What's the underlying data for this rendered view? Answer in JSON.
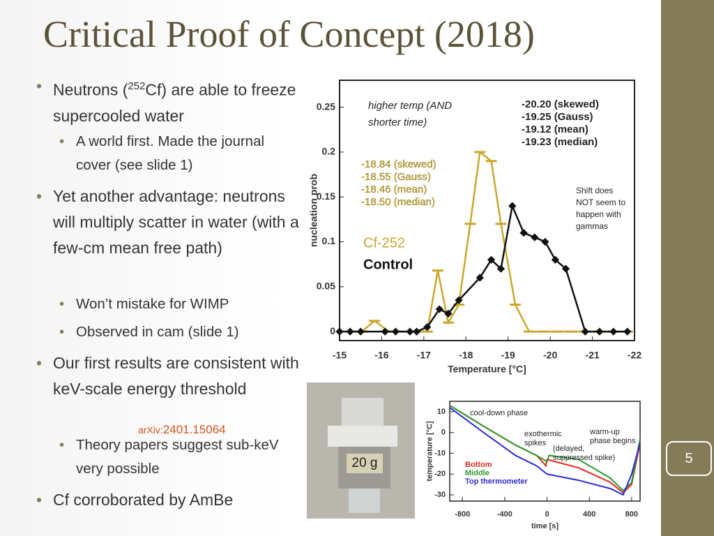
{
  "title": "Critical Proof of Concept (2018)",
  "bullets": [
    {
      "level": 1,
      "parts": [
        "Neutrons (",
        "252",
        "Cf) are able to freeze supercooled water"
      ]
    },
    {
      "level": 2,
      "text": "A world first. Made the journal cover (see slide 1)"
    },
    {
      "level": 1,
      "text": "Yet another advantage: neutrons will multiply scatter in water (with a few-cm mean free path)"
    },
    {
      "level": 2,
      "text": "Won’t mistake for WIMP"
    },
    {
      "level": 2,
      "text": "Observed in cam (slide 1)"
    },
    {
      "level": 1,
      "text": "Our first results are consistent with keV-scale energy threshold"
    },
    {
      "level": 2,
      "text": "Theory papers suggest sub-keV very possible"
    },
    {
      "level": 1,
      "text": "Cf corroborated by AmBe"
    }
  ],
  "arxiv": {
    "prefix": "arXiv:",
    "id": "2401.15064"
  },
  "slide_number": "5",
  "photo_label": "20 g",
  "figure_main": {
    "xlabel": "Temperature [°C]",
    "ylabel": "nucleation prob",
    "xlim": [
      -15,
      -22
    ],
    "ylim": [
      -0.01,
      0.28
    ],
    "xticks": [
      -15,
      -16,
      -17,
      -18,
      -19,
      -20,
      -21,
      -22
    ],
    "yticks": [
      0,
      0.05,
      0.1,
      0.15,
      0.2,
      0.25
    ],
    "note": "higher temp (AND shorter time)",
    "side_note": "Shift does NOT seem to happen with gammas",
    "control_fits": [
      "-20.20 (skewed)",
      "-19.25 (Gauss)",
      "-19.12 (mean)",
      "-19.23 (median)"
    ],
    "cf_fits": [
      "-18.84 (skewed)",
      "-18.55 (Gauss)",
      "-18.46 (mean)",
      "-18.50 (median)"
    ],
    "series": [
      {
        "name": "Cf-252",
        "color": "#c9a62b",
        "x": [
          -15.28,
          -15.53,
          -15.83,
          -16.17,
          -16.5,
          -16.83,
          -17.08,
          -17.33,
          -17.58,
          -17.83,
          -18.1,
          -18.33,
          -18.6,
          -18.83,
          -19.17,
          -19.5,
          -19.83,
          -20.17,
          -20.5,
          -20.83,
          -21.17,
          -21.5,
          -21.83
        ],
        "y": [
          0,
          0,
          0.012,
          0,
          0,
          0,
          0,
          0.068,
          0.01,
          0.03,
          0.12,
          0.2,
          0.19,
          0.12,
          0.03,
          0,
          0,
          0,
          0,
          0,
          0,
          0,
          0
        ]
      },
      {
        "name": "Control",
        "color": "#111111",
        "x": [
          -15,
          -15.25,
          -15.5,
          -16.08,
          -16.33,
          -16.67,
          -16.83,
          -17.08,
          -17.37,
          -17.58,
          -17.83,
          -18.33,
          -18.6,
          -18.83,
          -19.1,
          -19.37,
          -19.63,
          -19.88,
          -20.12,
          -20.37,
          -20.83,
          -21.17,
          -21.5,
          -21.83
        ],
        "y": [
          0,
          0,
          0,
          0,
          0,
          0,
          0,
          0.005,
          0.025,
          0.02,
          0.035,
          0.06,
          0.08,
          0.07,
          0.14,
          0.11,
          0.105,
          0.1,
          0.08,
          0.07,
          0,
          0,
          0,
          0
        ]
      }
    ]
  },
  "figure_temp": {
    "xlabel": "time [s]",
    "ylabel": "temperature [°C]",
    "xlim": [
      -920,
      880
    ],
    "ylim": [
      -33,
      15
    ],
    "xticks": [
      -800,
      -400,
      0,
      400,
      800
    ],
    "yticks": [
      10,
      0,
      -10,
      -20,
      -30
    ],
    "notes": [
      "cool-down phase",
      "exothermic spikes",
      "(delayed, suppressed spike)",
      "warm-up phase begins"
    ],
    "series": [
      {
        "name": "Bottom",
        "color": "#e8261e",
        "x": [
          -920,
          -600,
          -300,
          -100,
          -10,
          0,
          300,
          600,
          720,
          800,
          880
        ],
        "y": [
          13,
          3,
          -6,
          -11,
          -16,
          -13,
          -17,
          -24,
          -29,
          -25,
          -5
        ]
      },
      {
        "name": "Middle",
        "color": "#2a9a2a",
        "x": [
          -920,
          -600,
          -300,
          -100,
          0,
          20,
          300,
          600,
          720,
          800,
          880
        ],
        "y": [
          13,
          3,
          -6,
          -11,
          -14,
          -11,
          -13,
          -22,
          -28,
          -24,
          -3
        ]
      },
      {
        "name": "Top thermometer",
        "color": "#2b2bd0",
        "x": [
          -920,
          -600,
          -300,
          -100,
          0,
          300,
          600,
          720,
          800,
          880
        ],
        "y": [
          12,
          0,
          -11,
          -16,
          -20,
          -23,
          -27,
          -30,
          -20,
          -5
        ]
      }
    ]
  }
}
